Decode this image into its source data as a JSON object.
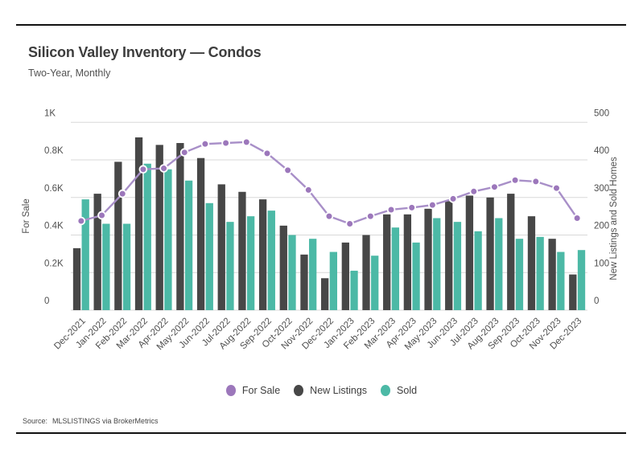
{
  "header": {
    "title": "Silicon Valley Inventory — Condos",
    "subtitle": "Two-Year, Monthly"
  },
  "chart_data": {
    "type": "bar",
    "subtype": "grouped bars with overlay line, dual y-axes",
    "categories": [
      "Dec-2021",
      "Jan-2022",
      "Feb-2022",
      "Mar-2022",
      "Apr-2022",
      "May-2022",
      "Jun-2022",
      "Jul-2022",
      "Aug-2022",
      "Sep-2022",
      "Oct-2022",
      "Nov-2022",
      "Dec-2022",
      "Jan-2023",
      "Feb-2023",
      "Mar-2023",
      "Apr-2023",
      "May-2023",
      "Jun-2023",
      "Jul-2023",
      "Aug-2023",
      "Sep-2023",
      "Oct-2023",
      "Nov-2023",
      "Dec-2023"
    ],
    "series": [
      {
        "name": "For Sale",
        "render": "line",
        "axis": "left",
        "color": "#9c77bb",
        "line_color": "#a88fc8",
        "values": [
          475,
          505,
          620,
          750,
          755,
          840,
          885,
          890,
          895,
          835,
          745,
          640,
          500,
          460,
          500,
          535,
          546,
          560,
          593,
          632,
          656,
          692,
          685,
          650,
          490
        ]
      },
      {
        "name": "New Listings",
        "render": "bar",
        "axis": "right",
        "color": "#474747",
        "values": [
          165,
          310,
          395,
          460,
          440,
          445,
          405,
          335,
          315,
          295,
          225,
          148,
          85,
          180,
          200,
          255,
          255,
          270,
          290,
          305,
          300,
          310,
          250,
          190,
          95
        ]
      },
      {
        "name": "Sold",
        "render": "bar",
        "axis": "right",
        "color": "#4cb9a6",
        "values": [
          295,
          230,
          230,
          390,
          375,
          345,
          285,
          235,
          250,
          265,
          200,
          190,
          155,
          105,
          145,
          220,
          180,
          245,
          235,
          210,
          245,
          190,
          195,
          155,
          160
        ]
      }
    ],
    "left_axis": {
      "label": "For Sale",
      "min": 0,
      "max": 1000,
      "tick_labels": [
        "1K",
        "0.8K",
        "0.6K",
        "0.4K",
        "0.2K",
        "0"
      ],
      "tick_values": [
        1000,
        800,
        600,
        400,
        200,
        0
      ]
    },
    "right_axis": {
      "label": "New Listings and Sold Homes",
      "min": 0,
      "max": 500,
      "tick_labels": [
        "500",
        "400",
        "300",
        "200",
        "100",
        "0"
      ],
      "tick_values": [
        500,
        400,
        300,
        200,
        100,
        0
      ]
    },
    "grid": true,
    "gridline_color": "#d8d8d8",
    "legend_position": "bottom-center"
  },
  "legend": {
    "items": [
      {
        "label": "For Sale",
        "color": "#9c77bb"
      },
      {
        "label": "New Listings",
        "color": "#474747"
      },
      {
        "label": "Sold",
        "color": "#4cb9a6"
      }
    ]
  },
  "footer": {
    "source_label": "Source:",
    "source_value": "MLSLISTINGS via BrokerMetrics"
  }
}
